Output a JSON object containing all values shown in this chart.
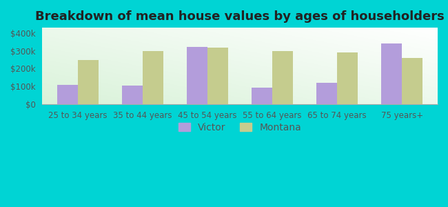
{
  "title": "Breakdown of mean house values by ages of householders",
  "categories": [
    "25 to 34 years",
    "35 to 44 years",
    "45 to 54 years",
    "55 to 64 years",
    "65 to 74 years",
    "75 years+"
  ],
  "victor_values": [
    110000,
    103000,
    320000,
    95000,
    120000,
    340000
  ],
  "montana_values": [
    250000,
    300000,
    318000,
    300000,
    290000,
    258000
  ],
  "victor_color": "#b39ddb",
  "montana_color": "#c5cc8e",
  "background_outer": "#00d4d4",
  "legend_labels": [
    "Victor",
    "Montana"
  ],
  "yticks": [
    0,
    100000,
    200000,
    300000,
    400000
  ],
  "ytick_labels": [
    "$0",
    "$100k",
    "$200k",
    "$300k",
    "$400k"
  ],
  "ylim": [
    0,
    430000
  ],
  "bar_width": 0.32,
  "title_fontsize": 13,
  "tick_fontsize": 8.5,
  "legend_fontsize": 10
}
